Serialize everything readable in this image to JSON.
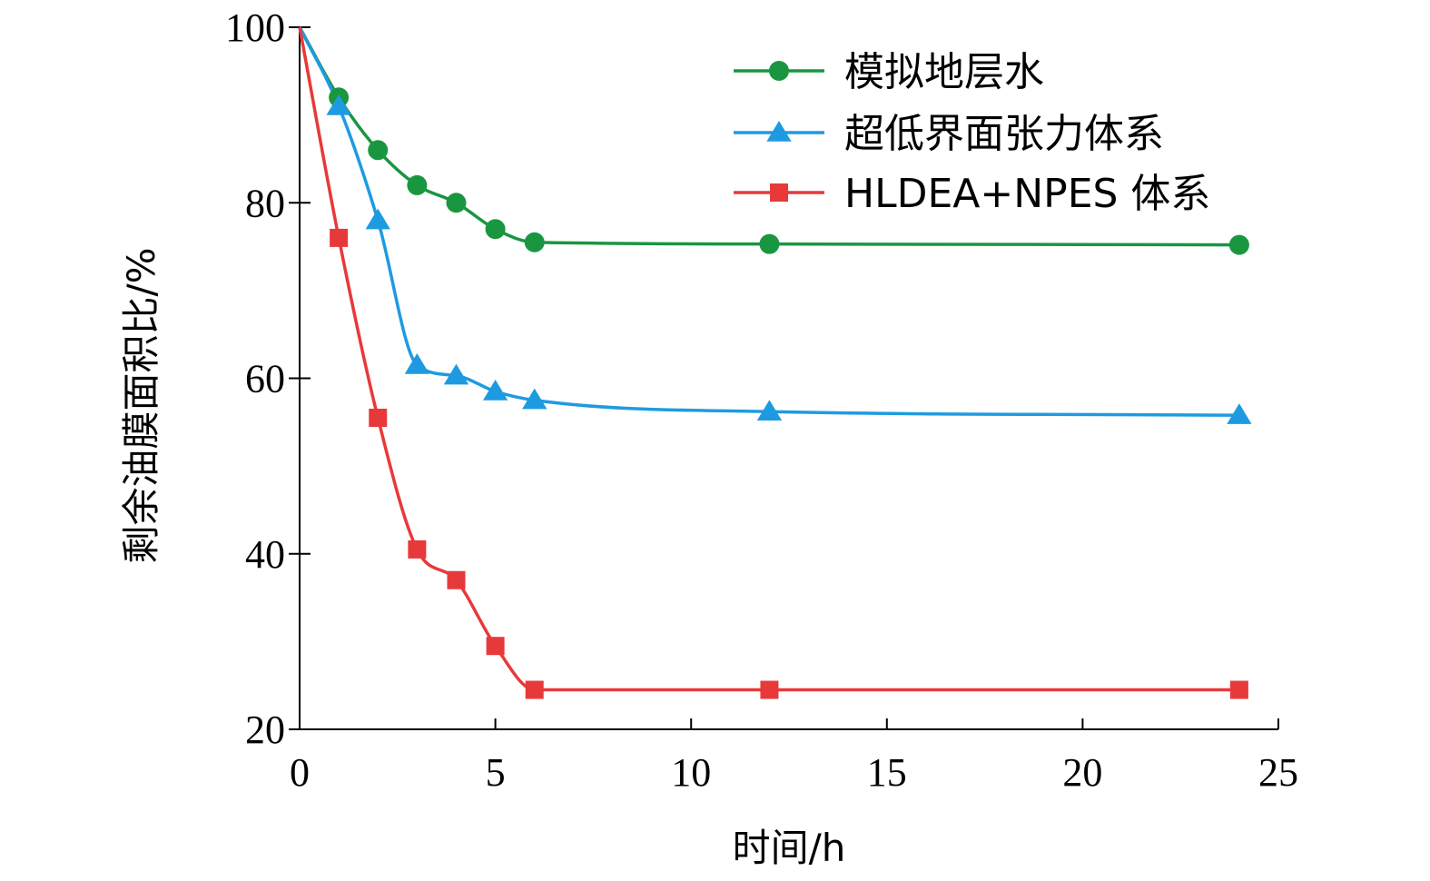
{
  "chart_data": {
    "type": "line",
    "xlabel": "时间/h",
    "ylabel": "剩余油膜面积比/%",
    "xlim": [
      0,
      25
    ],
    "ylim": [
      20,
      100
    ],
    "xticks": [
      0,
      5,
      10,
      15,
      20,
      25
    ],
    "yticks": [
      20,
      40,
      60,
      80,
      100
    ],
    "grid": false,
    "legend_position": "top-right",
    "series": [
      {
        "name": "模拟地层水",
        "marker": "circle",
        "color": "#1a9641",
        "x": [
          0,
          1,
          2,
          3,
          4,
          5,
          6,
          12,
          24
        ],
        "y": [
          100,
          92,
          86,
          82,
          80,
          77,
          75.5,
          75.3,
          75.2
        ]
      },
      {
        "name": "超低界面张力体系",
        "marker": "triangle",
        "color": "#1e9be0",
        "x": [
          0,
          1,
          2,
          3,
          4,
          5,
          6,
          12,
          24
        ],
        "y": [
          100,
          91,
          78,
          61.5,
          60.3,
          58.5,
          57.5,
          56.2,
          55.8
        ]
      },
      {
        "name": "HLDEA+NPES 体系",
        "marker": "square",
        "color": "#e8393a",
        "x": [
          0,
          1,
          2,
          3,
          4,
          5,
          6,
          12,
          24
        ],
        "y": [
          100,
          76,
          55.5,
          40.5,
          37,
          29.5,
          24.5,
          24.5,
          24.5
        ]
      }
    ]
  }
}
